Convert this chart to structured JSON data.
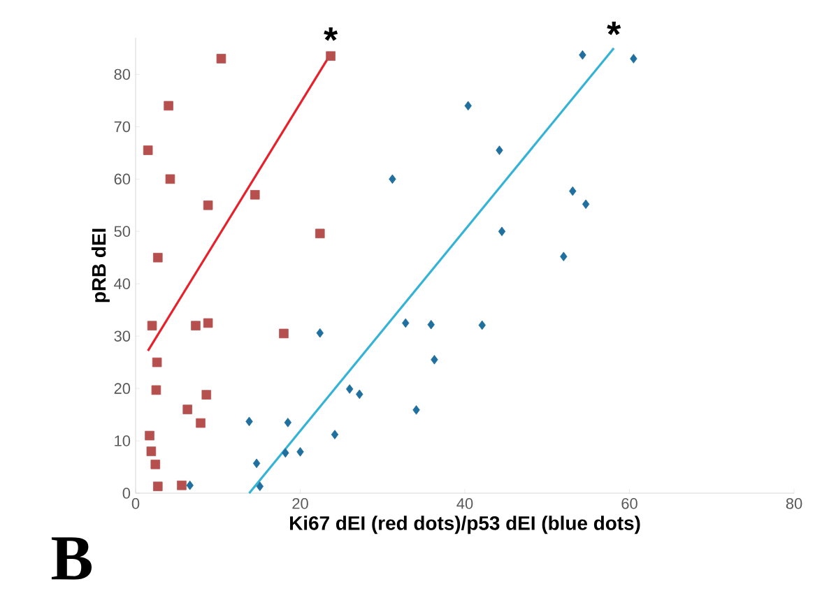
{
  "chart_data": {
    "type": "scatter",
    "xlabel": "Ki67 dEI (red dots)/p53 dEI (blue dots)",
    "ylabel": "pRB dEI",
    "xlim": [
      0,
      80
    ],
    "ylim": [
      0,
      87
    ],
    "xticks": [
      0,
      20,
      40,
      60,
      80
    ],
    "yticks": [
      0,
      10,
      20,
      30,
      40,
      50,
      60,
      70,
      80
    ],
    "grid": false,
    "series": [
      {
        "marker": "square",
        "color": "#b5504e",
        "x": [
          1.5,
          4,
          4.2,
          8.8,
          14.5,
          23.7,
          2.7,
          22.4,
          2,
          7.3,
          8.8,
          18,
          2.6,
          2.5,
          8.6,
          7.9,
          6.3,
          1.7,
          1.9,
          2.4,
          2.7,
          5.6,
          10.4
        ],
        "values": [
          65.5,
          74,
          60,
          55,
          57,
          83.5,
          45,
          49.6,
          32,
          32,
          32.5,
          30.5,
          25,
          19.7,
          18.8,
          13.4,
          16,
          11,
          8,
          5.5,
          1.3,
          1.5,
          83
        ]
      },
      {
        "marker": "diamond",
        "color": "#1f6f9f",
        "x": [
          54.3,
          60.5,
          40.4,
          44.2,
          31.2,
          53.1,
          54.7,
          44.5,
          52,
          22.4,
          32.8,
          35.9,
          42.1,
          36.3,
          26,
          27.2,
          34.1,
          18.5,
          24.2,
          18.2,
          20,
          13.8,
          14.7,
          15.1,
          6.6
        ],
        "values": [
          83.7,
          83,
          74,
          65.5,
          60,
          57.7,
          55.2,
          50,
          45.2,
          30.6,
          32.5,
          32.2,
          32.1,
          25.5,
          19.9,
          18.9,
          15.9,
          13.5,
          11.2,
          7.7,
          7.9,
          13.7,
          5.7,
          1.3,
          1.5
        ]
      },
      {
        "type": "line",
        "color": "#e8202a",
        "x": [
          1.5,
          23.7
        ],
        "values": [
          27.2,
          83.9
        ]
      },
      {
        "type": "line",
        "color": "#35b3d6",
        "x": [
          13.8,
          58.1
        ],
        "values": [
          0,
          85
        ]
      }
    ],
    "annotations": [
      "B",
      {
        "text": "*",
        "x": 23.7,
        "y": 83.9
      },
      {
        "text": "*",
        "x": 58.1,
        "y": 85
      }
    ]
  }
}
